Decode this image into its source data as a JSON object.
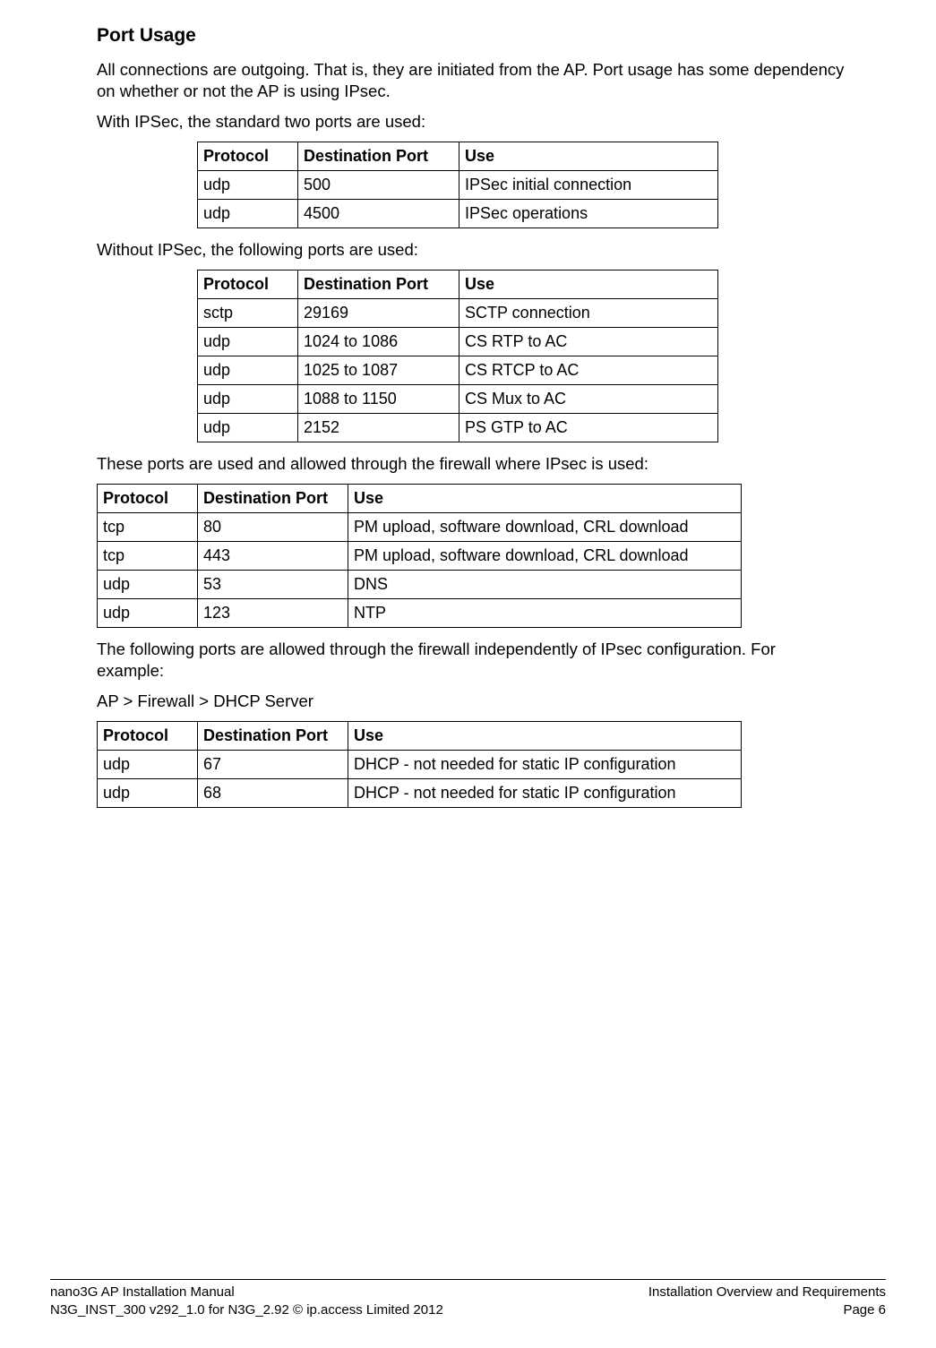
{
  "heading": "Port Usage",
  "para1": "All connections are outgoing. That is, they are initiated from the AP. Port usage has some dependency on whether or not the AP is using IPsec.",
  "para2": "With IPSec, the standard two ports are used:",
  "headers": {
    "protocol": "Protocol",
    "port": "Destination Port",
    "use": "Use"
  },
  "table1": {
    "rows": [
      {
        "protocol": "udp",
        "port": "500",
        "use": "IPSec initial connection"
      },
      {
        "protocol": "udp",
        "port": "4500",
        "use": "IPSec operations"
      }
    ]
  },
  "para3": "Without IPSec, the following ports are used:",
  "table2": {
    "rows": [
      {
        "protocol": "sctp",
        "port": "29169",
        "use": "SCTP connection"
      },
      {
        "protocol": "udp",
        "port": "1024 to 1086",
        "use": "CS RTP to AC"
      },
      {
        "protocol": "udp",
        "port": "1025 to 1087",
        "use": "CS RTCP to AC"
      },
      {
        "protocol": "udp",
        "port": "1088 to 1150",
        "use": "CS Mux to AC"
      },
      {
        "protocol": "udp",
        "port": "2152",
        "use": "PS GTP to AC"
      }
    ]
  },
  "para4": "These ports are used and allowed through the firewall where IPsec is used:",
  "table3": {
    "rows": [
      {
        "protocol": "tcp",
        "port": "80",
        "use": "PM upload, software download, CRL download"
      },
      {
        "protocol": "tcp",
        "port": "443",
        "use": "PM upload, software download, CRL download"
      },
      {
        "protocol": "udp",
        "port": "53",
        "use": "DNS"
      },
      {
        "protocol": "udp",
        "port": "123",
        "use": "NTP"
      }
    ]
  },
  "para5": "The following ports are allowed through the firewall independently of IPsec configuration. For example:",
  "para6": "AP > Firewall > DHCP Server",
  "table4": {
    "rows": [
      {
        "protocol": "udp",
        "port": "67",
        "use": "DHCP - not needed for static IP configuration"
      },
      {
        "protocol": "udp",
        "port": "68",
        "use": "DHCP - not needed for static IP configuration"
      }
    ]
  },
  "footer": {
    "left1": "nano3G AP Installation Manual",
    "left2": "N3G_INST_300 v292_1.0 for N3G_2.92 © ip.access Limited 2012",
    "right1": "Installation Overview and Requirements",
    "right2": "Page 6"
  }
}
